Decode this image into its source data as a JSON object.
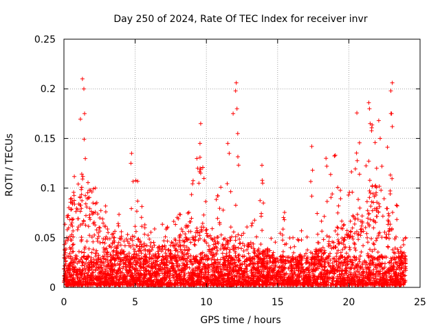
{
  "chart_data": {
    "type": "scatter",
    "title": "Day 250 of 2024, Rate Of TEC Index for receiver invr",
    "xlabel": "GPS time / hours",
    "ylabel": "ROTI / TECUs",
    "xlim": [
      0,
      25
    ],
    "ylim": [
      0,
      0.25
    ],
    "x_ticks": [
      0,
      5,
      10,
      15,
      20,
      25
    ],
    "x_tick_labels": [
      "0",
      "5",
      "10",
      "15",
      "20",
      "25"
    ],
    "y_ticks": [
      0,
      0.05,
      0.1,
      0.15,
      0.2,
      0.25
    ],
    "y_tick_labels": [
      "0",
      "0.05",
      "0.1",
      "0.15",
      "0.2",
      "0.25"
    ],
    "grid": true,
    "marker": "+",
    "marker_color": "#ff0000",
    "data_coverage_hours": [
      0,
      24
    ],
    "envelope": {
      "x": [
        0,
        0.3,
        0.5,
        1.0,
        1.3,
        1.5,
        2.0,
        2.5,
        3.0,
        3.5,
        4.0,
        4.5,
        5.0,
        5.5,
        6.0,
        6.5,
        7.0,
        7.5,
        8.0,
        8.5,
        9.0,
        9.5,
        10.0,
        10.5,
        11.0,
        11.5,
        12.0,
        12.5,
        13.0,
        13.5,
        14.0,
        14.5,
        15.0,
        15.5,
        16.0,
        16.5,
        17.0,
        17.5,
        18.0,
        18.5,
        19.0,
        19.5,
        20.0,
        20.5,
        21.0,
        21.5,
        22.0,
        22.5,
        23.0,
        23.5,
        24.0
      ],
      "typical": [
        0.045,
        0.08,
        0.09,
        0.105,
        0.12,
        0.11,
        0.09,
        0.08,
        0.06,
        0.05,
        0.05,
        0.05,
        0.05,
        0.045,
        0.04,
        0.04,
        0.04,
        0.045,
        0.05,
        0.06,
        0.07,
        0.065,
        0.055,
        0.05,
        0.05,
        0.05,
        0.055,
        0.05,
        0.045,
        0.04,
        0.04,
        0.035,
        0.03,
        0.03,
        0.03,
        0.03,
        0.035,
        0.04,
        0.045,
        0.05,
        0.06,
        0.065,
        0.06,
        0.07,
        0.085,
        0.1,
        0.11,
        0.09,
        0.06,
        0.035,
        0.035
      ],
      "peak": [
        0.06,
        0.1,
        0.1,
        0.145,
        0.21,
        0.13,
        0.1,
        0.11,
        0.085,
        0.07,
        0.08,
        0.07,
        0.135,
        0.08,
        0.06,
        0.06,
        0.065,
        0.07,
        0.075,
        0.09,
        0.11,
        0.165,
        0.09,
        0.08,
        0.12,
        0.145,
        0.206,
        0.09,
        0.075,
        0.07,
        0.122,
        0.06,
        0.05,
        0.077,
        0.06,
        0.06,
        0.063,
        0.14,
        0.07,
        0.13,
        0.135,
        0.09,
        0.11,
        0.185,
        0.125,
        0.185,
        0.17,
        0.14,
        0.206,
        0.06,
        0.055
      ]
    },
    "notable_peaks": [
      {
        "x": 1.3,
        "y": 0.21
      },
      {
        "x": 1.4,
        "y": 0.2
      },
      {
        "x": 1.45,
        "y": 0.175
      },
      {
        "x": 4.75,
        "y": 0.135
      },
      {
        "x": 4.7,
        "y": 0.125
      },
      {
        "x": 9.6,
        "y": 0.165
      },
      {
        "x": 9.55,
        "y": 0.145
      },
      {
        "x": 9.6,
        "y": 0.115
      },
      {
        "x": 11.5,
        "y": 0.145
      },
      {
        "x": 11.6,
        "y": 0.135
      },
      {
        "x": 12.1,
        "y": 0.206
      },
      {
        "x": 12.05,
        "y": 0.198
      },
      {
        "x": 12.15,
        "y": 0.18
      },
      {
        "x": 12.2,
        "y": 0.155
      },
      {
        "x": 13.9,
        "y": 0.123
      },
      {
        "x": 13.95,
        "y": 0.105
      },
      {
        "x": 14.0,
        "y": 0.085
      },
      {
        "x": 17.4,
        "y": 0.142
      },
      {
        "x": 17.45,
        "y": 0.118
      },
      {
        "x": 17.4,
        "y": 0.092
      },
      {
        "x": 18.4,
        "y": 0.13
      },
      {
        "x": 18.45,
        "y": 0.122
      },
      {
        "x": 19.05,
        "y": 0.133
      },
      {
        "x": 21.4,
        "y": 0.186
      },
      {
        "x": 21.45,
        "y": 0.18
      },
      {
        "x": 22.1,
        "y": 0.168
      },
      {
        "x": 22.2,
        "y": 0.15
      },
      {
        "x": 23.05,
        "y": 0.206
      },
      {
        "x": 22.95,
        "y": 0.198
      },
      {
        "x": 23.0,
        "y": 0.175
      },
      {
        "x": 23.05,
        "y": 0.162
      }
    ]
  }
}
